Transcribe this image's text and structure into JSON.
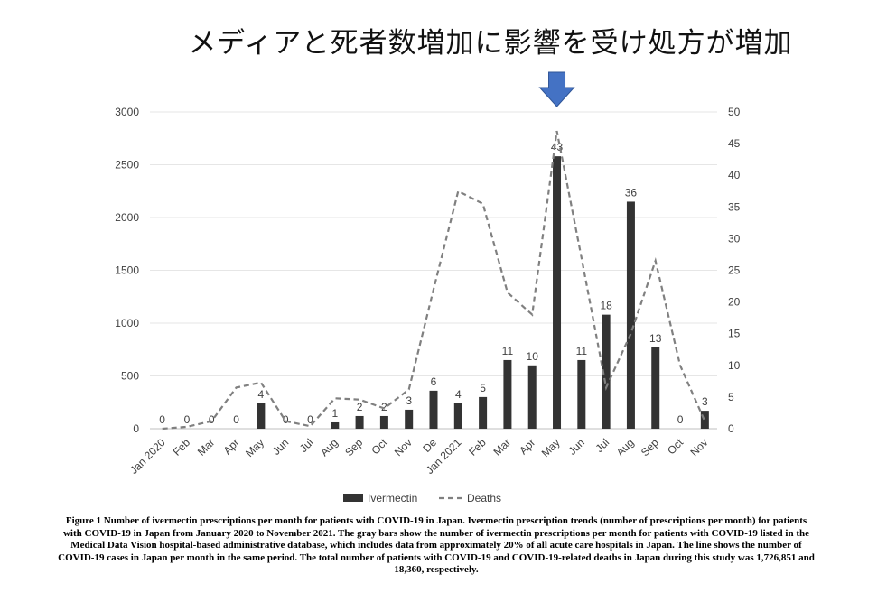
{
  "headline": "メディアと死者数増加に影響を受け処方が増加",
  "chart_data": {
    "type": "bar",
    "categories": [
      "Jan 2020",
      "Feb",
      "Mar",
      "Apr",
      "May",
      "Jun",
      "Jul",
      "Aug",
      "Sep",
      "Oct",
      "Nov",
      "De",
      "Jan 2021",
      "Feb",
      "Mar",
      "Apr",
      "May",
      "Jun",
      "Jul",
      "Aug",
      "Sep",
      "Oct",
      "Nov"
    ],
    "y_left": {
      "min": 0,
      "max": 3000,
      "ticks": [
        "0",
        "500",
        "1000",
        "1500",
        "2000",
        "2500",
        "3000"
      ]
    },
    "y_right": {
      "min": 0,
      "max": 50,
      "ticks": [
        "0",
        "5",
        "10",
        "15",
        "20",
        "25",
        "30",
        "35",
        "40",
        "45",
        "50"
      ]
    },
    "series": [
      {
        "name": "Ivermectin",
        "kind": "bar",
        "axis": "left",
        "color": "#333333",
        "values": [
          0,
          0,
          0,
          0,
          240,
          0,
          0,
          60,
          120,
          120,
          180,
          360,
          240,
          300,
          650,
          600,
          2580,
          650,
          1080,
          2150,
          770,
          0,
          170
        ],
        "labels": [
          "0",
          "0",
          "0",
          "0",
          "4",
          "0",
          "0",
          "1",
          "2",
          "2",
          "3",
          "6",
          "4",
          "5",
          "11",
          "10",
          "43",
          "11",
          "18",
          "36",
          "13",
          "0",
          "3"
        ]
      },
      {
        "name": "Deaths",
        "kind": "line",
        "axis": "right",
        "color": "#808080",
        "dash": "dashed",
        "values": [
          0,
          0.3,
          1.2,
          6.5,
          7.3,
          1.2,
          0.4,
          4.8,
          4.6,
          3.2,
          6.2,
          22,
          37.5,
          35.5,
          21.5,
          18,
          47,
          27,
          6.5,
          15,
          26.5,
          10,
          1.2
        ]
      }
    ],
    "legend": {
      "position": "bottom-center"
    },
    "annotation": {
      "type": "arrow",
      "color": "#4472C4",
      "points_to": "May"
    }
  },
  "caption": "Figure 1 Number of ivermectin prescriptions per month for patients with COVID-19 in Japan. Ivermectin prescription trends (number of prescriptions per month) for patients with COVID-19 in Japan from January 2020 to November 2021. The gray bars show the number of ivermectin prescriptions per month for patients with COVID-19 listed in the Medical Data Vision hospital-based administrative database, which includes data from approximately 20% of all acute care hospitals in Japan. The line shows the number of COVID-19 cases in Japan per month in the same period. The total number of patients with COVID-19 and COVID-19-related deaths in Japan during this study was 1,726,851 and 18,360, respectively."
}
